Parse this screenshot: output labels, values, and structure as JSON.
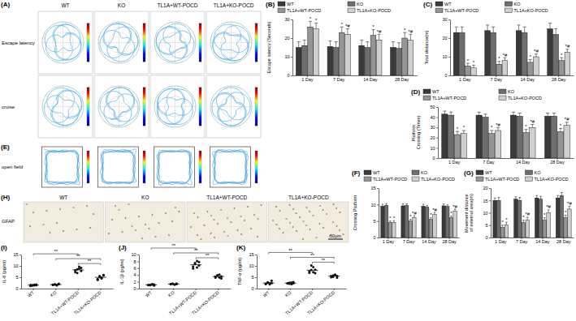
{
  "chart_data": [
    {
      "type": "bar",
      "title": "(B)",
      "ylabel": "Escape latency (Seconds)",
      "categories": [
        "1 Day",
        "7 Day",
        "14 Day",
        "28 Day"
      ],
      "ylim": [
        0,
        30
      ],
      "yticks": [
        0,
        10,
        20,
        30
      ],
      "legend": "top",
      "series": [
        {
          "name": "WT",
          "color": "#3a3a3a",
          "values": [
            15,
            15.5,
            16,
            15
          ],
          "errors": [
            3,
            3,
            3,
            3
          ]
        },
        {
          "name": "KO",
          "color": "#6e6e6e",
          "values": [
            16,
            15,
            15,
            14.5
          ],
          "errors": [
            3,
            3,
            3,
            3
          ]
        },
        {
          "name": "TL1A+WT-POCD",
          "color": "#959595",
          "values": [
            26,
            23,
            21.5,
            20
          ],
          "errors": [
            3,
            3,
            3,
            3
          ],
          "significance": [
            "*",
            "*",
            "*",
            "*"
          ]
        },
        {
          "name": "TL1A+KO-POCD",
          "color": "#cfcfcf",
          "values": [
            25,
            22,
            19,
            19
          ],
          "errors": [
            3,
            3,
            3,
            3
          ],
          "significance": [
            "*",
            "*#",
            "*#",
            "*#"
          ]
        }
      ]
    },
    {
      "type": "bar",
      "title": "(C)",
      "ylabel": "Total distance(m)",
      "categories": [
        "1 Day",
        "7 Day",
        "14 Day",
        "28 Day"
      ],
      "ylim": [
        0,
        30
      ],
      "yticks": [
        0,
        10,
        20,
        30
      ],
      "legend": "top",
      "series": [
        {
          "name": "WT",
          "color": "#3a3a3a",
          "values": [
            23,
            24,
            24,
            25
          ],
          "errors": [
            3,
            3,
            3,
            3
          ]
        },
        {
          "name": "KO",
          "color": "#6e6e6e",
          "values": [
            23,
            23,
            23,
            22
          ],
          "errors": [
            3,
            3,
            3,
            3
          ]
        },
        {
          "name": "TL1A+WT-POCD",
          "color": "#959595",
          "values": [
            5,
            6,
            7,
            8
          ],
          "errors": [
            1.5,
            1.5,
            1.5,
            1.5
          ],
          "significance": [
            "*",
            "*",
            "*",
            "*"
          ]
        },
        {
          "name": "TL1A+KO-POCD",
          "color": "#cfcfcf",
          "values": [
            4,
            8,
            10,
            12.5
          ],
          "errors": [
            1.5,
            1.5,
            1.5,
            1.5
          ],
          "significance": [
            "*",
            "*#",
            "*#",
            "*#"
          ]
        }
      ]
    },
    {
      "type": "bar",
      "title": "(D)",
      "ylabel": "Platform Crossing (Times)",
      "categories": [
        "1 Day",
        "7 Day",
        "14 Day",
        "28 Day"
      ],
      "ylim": [
        0,
        50
      ],
      "yticks": [
        0,
        10,
        20,
        30,
        40,
        50
      ],
      "legend": "top",
      "series": [
        {
          "name": "WT",
          "color": "#3a3a3a",
          "values": [
            43,
            42,
            42,
            41
          ],
          "errors": [
            3,
            3,
            3,
            3
          ]
        },
        {
          "name": "KO",
          "color": "#6e6e6e",
          "values": [
            42,
            40,
            41,
            41
          ],
          "errors": [
            3,
            3,
            3,
            3
          ]
        },
        {
          "name": "TL1A+WT-POCD",
          "color": "#959595",
          "values": [
            23,
            24,
            25,
            26
          ],
          "errors": [
            3,
            3,
            3,
            3
          ],
          "significance": [
            "*",
            "*",
            "*",
            "*"
          ]
        },
        {
          "name": "TL1A+KO-POCD",
          "color": "#cfcfcf",
          "values": [
            24,
            27,
            30,
            32
          ],
          "errors": [
            3,
            3,
            3,
            3
          ],
          "significance": [
            "*",
            "*#",
            "*#",
            "*#"
          ]
        }
      ]
    },
    {
      "type": "bar",
      "title": "(F)",
      "ylabel": "Crossing Platform",
      "categories": [
        "1 Day",
        "7 Day",
        "14 Day",
        "28 Day"
      ],
      "ylim": [
        0,
        15
      ],
      "yticks": [
        0,
        5,
        10,
        15
      ],
      "legend": "top",
      "series": [
        {
          "name": "WT",
          "color": "#3a3a3a",
          "values": [
            9.5,
            9.6,
            9.5,
            9.6
          ],
          "errors": [
            0.6,
            0.6,
            0.6,
            0.6
          ]
        },
        {
          "name": "KO",
          "color": "#6e6e6e",
          "values": [
            9.8,
            9.7,
            9.2,
            9.4
          ],
          "errors": [
            0.5,
            0.5,
            0.5,
            0.5
          ]
        },
        {
          "name": "TL1A+WT-POCD",
          "color": "#959595",
          "values": [
            4.5,
            5,
            5.5,
            6
          ],
          "errors": [
            0.5,
            0.5,
            0.5,
            0.5
          ],
          "significance": [
            "*",
            "*",
            "*",
            "*"
          ]
        },
        {
          "name": "TL1A+KO-POCD",
          "color": "#cfcfcf",
          "values": [
            4.5,
            6,
            7,
            8
          ],
          "errors": [
            0.6,
            0.6,
            0.6,
            0.6
          ],
          "significance": [
            "*",
            "*#",
            "*#",
            "*#"
          ]
        }
      ]
    },
    {
      "type": "bar",
      "title": "(G)",
      "ylabel": "Movement distance of external area(m)",
      "categories": [
        "1 Day",
        "7 Day",
        "14 Day",
        "28 Day"
      ],
      "ylim": [
        0,
        20
      ],
      "yticks": [
        0,
        5,
        10,
        15,
        20
      ],
      "legend": "top",
      "series": [
        {
          "name": "WT",
          "color": "#3a3a3a",
          "values": [
            15,
            15.5,
            16,
            16
          ],
          "errors": [
            1,
            1,
            1,
            1
          ]
        },
        {
          "name": "KO",
          "color": "#6e6e6e",
          "values": [
            15,
            15,
            15.5,
            17
          ],
          "errors": [
            1.2,
            1.2,
            1.2,
            1.2
          ]
        },
        {
          "name": "TL1A+WT-POCD",
          "color": "#959595",
          "values": [
            4,
            6,
            7,
            8
          ],
          "errors": [
            1,
            1,
            1,
            1
          ],
          "significance": [
            "*",
            "*",
            "*",
            "*"
          ]
        },
        {
          "name": "TL1A+KO-POCD",
          "color": "#cfcfcf",
          "values": [
            5,
            7,
            10,
            11.5
          ],
          "errors": [
            1.2,
            1.2,
            1.2,
            1.2
          ],
          "significance": [
            "*",
            "*#",
            "*#",
            "*#"
          ]
        }
      ]
    },
    {
      "type": "dot",
      "title": "(I)",
      "ylabel": "IL-6 (pg/ml)",
      "categories": [
        "WT",
        "KO",
        "TL1A+WT-POCD",
        "TL1A+KO-POCD"
      ],
      "ylim": [
        0,
        15
      ],
      "yticks": [
        0,
        5,
        10,
        15
      ],
      "color": "#111111",
      "points": [
        [
          1.2,
          1.5,
          1.4,
          1.8,
          1.6,
          1.3,
          1.7,
          1.5
        ],
        [
          1.6,
          1.9,
          1.5,
          2.0,
          1.7,
          1.8,
          1.4,
          2.1
        ],
        [
          7.2,
          8.5,
          9.6,
          7.8,
          8.0,
          6.9,
          8.8,
          9.1
        ],
        [
          4.2,
          5.5,
          4.8,
          6.0,
          3.8,
          5.1,
          4.5,
          5.8
        ]
      ],
      "means": [
        1.5,
        1.75,
        8.24,
        4.96
      ],
      "brackets": [
        {
          "text": "**",
          "between": [
            "WT",
            "TL1A+WT-POCD"
          ]
        },
        {
          "text": "**",
          "between": [
            "KO",
            "TL1A+KO-POCD"
          ]
        },
        {
          "text": "**",
          "between": [
            "TL1A+WT-POCD",
            "TL1A+KO-POCD"
          ]
        }
      ]
    },
    {
      "type": "dot",
      "title": "(J)",
      "ylabel": "IL-1β (pg/ml)",
      "categories": [
        "WT",
        "KO",
        "TL1A+WT-POCD",
        "TL1A+KO-POCD"
      ],
      "ylim": [
        0,
        10
      ],
      "yticks": [
        0,
        2,
        4,
        6,
        8,
        10
      ],
      "color": "#111111",
      "points": [
        [
          1.0,
          1.1,
          1.2,
          0.9,
          1.1,
          1.0,
          1.3,
          1.2
        ],
        [
          1.3,
          1.4,
          1.2,
          1.5,
          1.3,
          1.4,
          1.2,
          1.3
        ],
        [
          6.5,
          7.2,
          8.1,
          6.8,
          5.9,
          7.5,
          6.2,
          7.8
        ],
        [
          3.2,
          3.8,
          4.1,
          3.0,
          3.5,
          3.9,
          3.3,
          3.6
        ]
      ],
      "means": [
        1.1,
        1.325,
        7.0,
        3.55
      ],
      "brackets": [
        {
          "text": "**",
          "between": [
            "WT",
            "TL1A+WT-POCD"
          ]
        },
        {
          "text": "**",
          "between": [
            "KO",
            "TL1A+KO-POCD"
          ]
        },
        {
          "text": "**",
          "between": [
            "TL1A+WT-POCD",
            "TL1A+KO-POCD"
          ]
        }
      ]
    },
    {
      "type": "dot",
      "title": "(K)",
      "ylabel": "TNF-α (pg/ml)",
      "categories": [
        "WT",
        "KO",
        "TL1A+WT-POCD",
        "TL1A+KO-POCD"
      ],
      "ylim": [
        0,
        15
      ],
      "yticks": [
        0,
        5,
        10,
        15
      ],
      "color": "#111111",
      "points": [
        [
          2.0,
          2.8,
          2.3,
          3.5,
          2.1,
          2.6,
          1.9,
          2.4
        ],
        [
          2.2,
          2.6,
          2.0,
          2.9,
          2.4,
          2.1,
          2.7,
          2.3
        ],
        [
          7.0,
          8.2,
          9.5,
          6.8,
          7.6,
          10.2,
          7.2,
          8.3
        ],
        [
          5.0,
          5.8,
          6.2,
          4.8,
          5.5,
          5.2,
          6.0,
          5.5
        ]
      ],
      "means": [
        2.45,
        2.4,
        8.1,
        5.5
      ],
      "brackets": [
        {
          "text": "**",
          "between": [
            "WT",
            "TL1A+WT-POCD"
          ]
        },
        {
          "text": "**",
          "between": [
            "KO",
            "TL1A+KO-POCD"
          ]
        },
        {
          "text": "**",
          "between": [
            "TL1A+WT-POCD",
            "TL1A+KO-POCD"
          ]
        }
      ]
    }
  ],
  "images": [
    {
      "panel": "(A)",
      "columns": [
        "WT",
        "KO",
        "TL1A+WT-POCD",
        "TL1A+KO-POCD"
      ],
      "rows": [
        "Escape latency",
        "cruise"
      ]
    },
    {
      "panel": "(E)",
      "label": "open field"
    },
    {
      "panel": "(H)",
      "label": "GFAP",
      "columns": [
        "WT",
        "KO",
        "TL1A+WT-POCD",
        "TL1A+KO-POCD"
      ],
      "scale_bar": "50μm"
    }
  ]
}
